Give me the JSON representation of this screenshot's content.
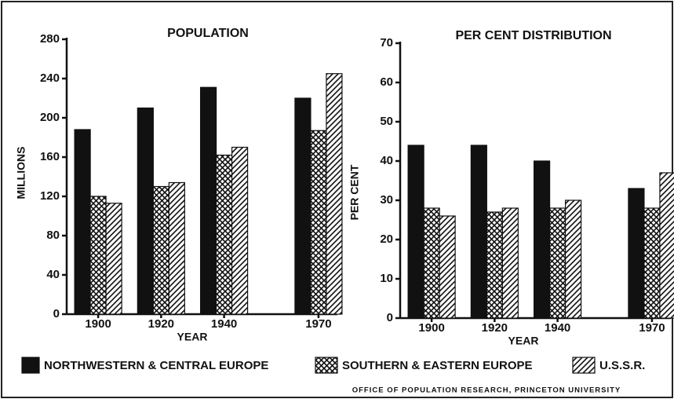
{
  "charts": [
    {
      "type": "bar",
      "title": "POPULATION",
      "y_label": "MILLIONS",
      "x_label": "YEAR",
      "x": [
        1900,
        1920,
        1940,
        1970
      ],
      "xlim": [
        1890,
        1976
      ],
      "xticks": [
        1900,
        1920,
        1940,
        1970
      ],
      "ylim": [
        0,
        280
      ],
      "yticks": [
        0,
        40,
        80,
        120,
        160,
        200,
        240,
        280
      ],
      "series": [
        {
          "name": "NORTHWESTERN & CENTRAL EUROPE",
          "color": "#111111",
          "pattern": "solid",
          "values": [
            188,
            210,
            231,
            220
          ]
        },
        {
          "name": "SOUTHERN & EASTERN EUROPE",
          "color": "#111111",
          "pattern": "crosshatch",
          "values": [
            120,
            130,
            162,
            187
          ]
        },
        {
          "name": "U.S.S.R.",
          "color": "#111111",
          "pattern": "hatch",
          "values": [
            113,
            134,
            170,
            245
          ]
        }
      ]
    },
    {
      "type": "bar",
      "title": "PER CENT DISTRIBUTION",
      "y_label": "PER CENT",
      "x_label": "YEAR",
      "x": [
        1900,
        1920,
        1940,
        1970
      ],
      "xlim": [
        1890,
        1976
      ],
      "xticks": [
        1900,
        1920,
        1940,
        1970
      ],
      "ylim": [
        0,
        70
      ],
      "yticks": [
        0,
        10,
        20,
        30,
        40,
        50,
        60,
        70
      ],
      "series": [
        {
          "name": "NORTHWESTERN & CENTRAL EUROPE",
          "color": "#111111",
          "pattern": "solid",
          "values": [
            44,
            44,
            40,
            33
          ]
        },
        {
          "name": "SOUTHERN & EASTERN EUROPE",
          "color": "#111111",
          "pattern": "crosshatch",
          "values": [
            28,
            27,
            28,
            28
          ]
        },
        {
          "name": "U.S.S.R.",
          "color": "#111111",
          "pattern": "hatch",
          "values": [
            26,
            28,
            30,
            37
          ]
        }
      ]
    }
  ],
  "credit": "OFFICE OF POPULATION RESEARCH, PRINCETON UNIVERSITY"
}
